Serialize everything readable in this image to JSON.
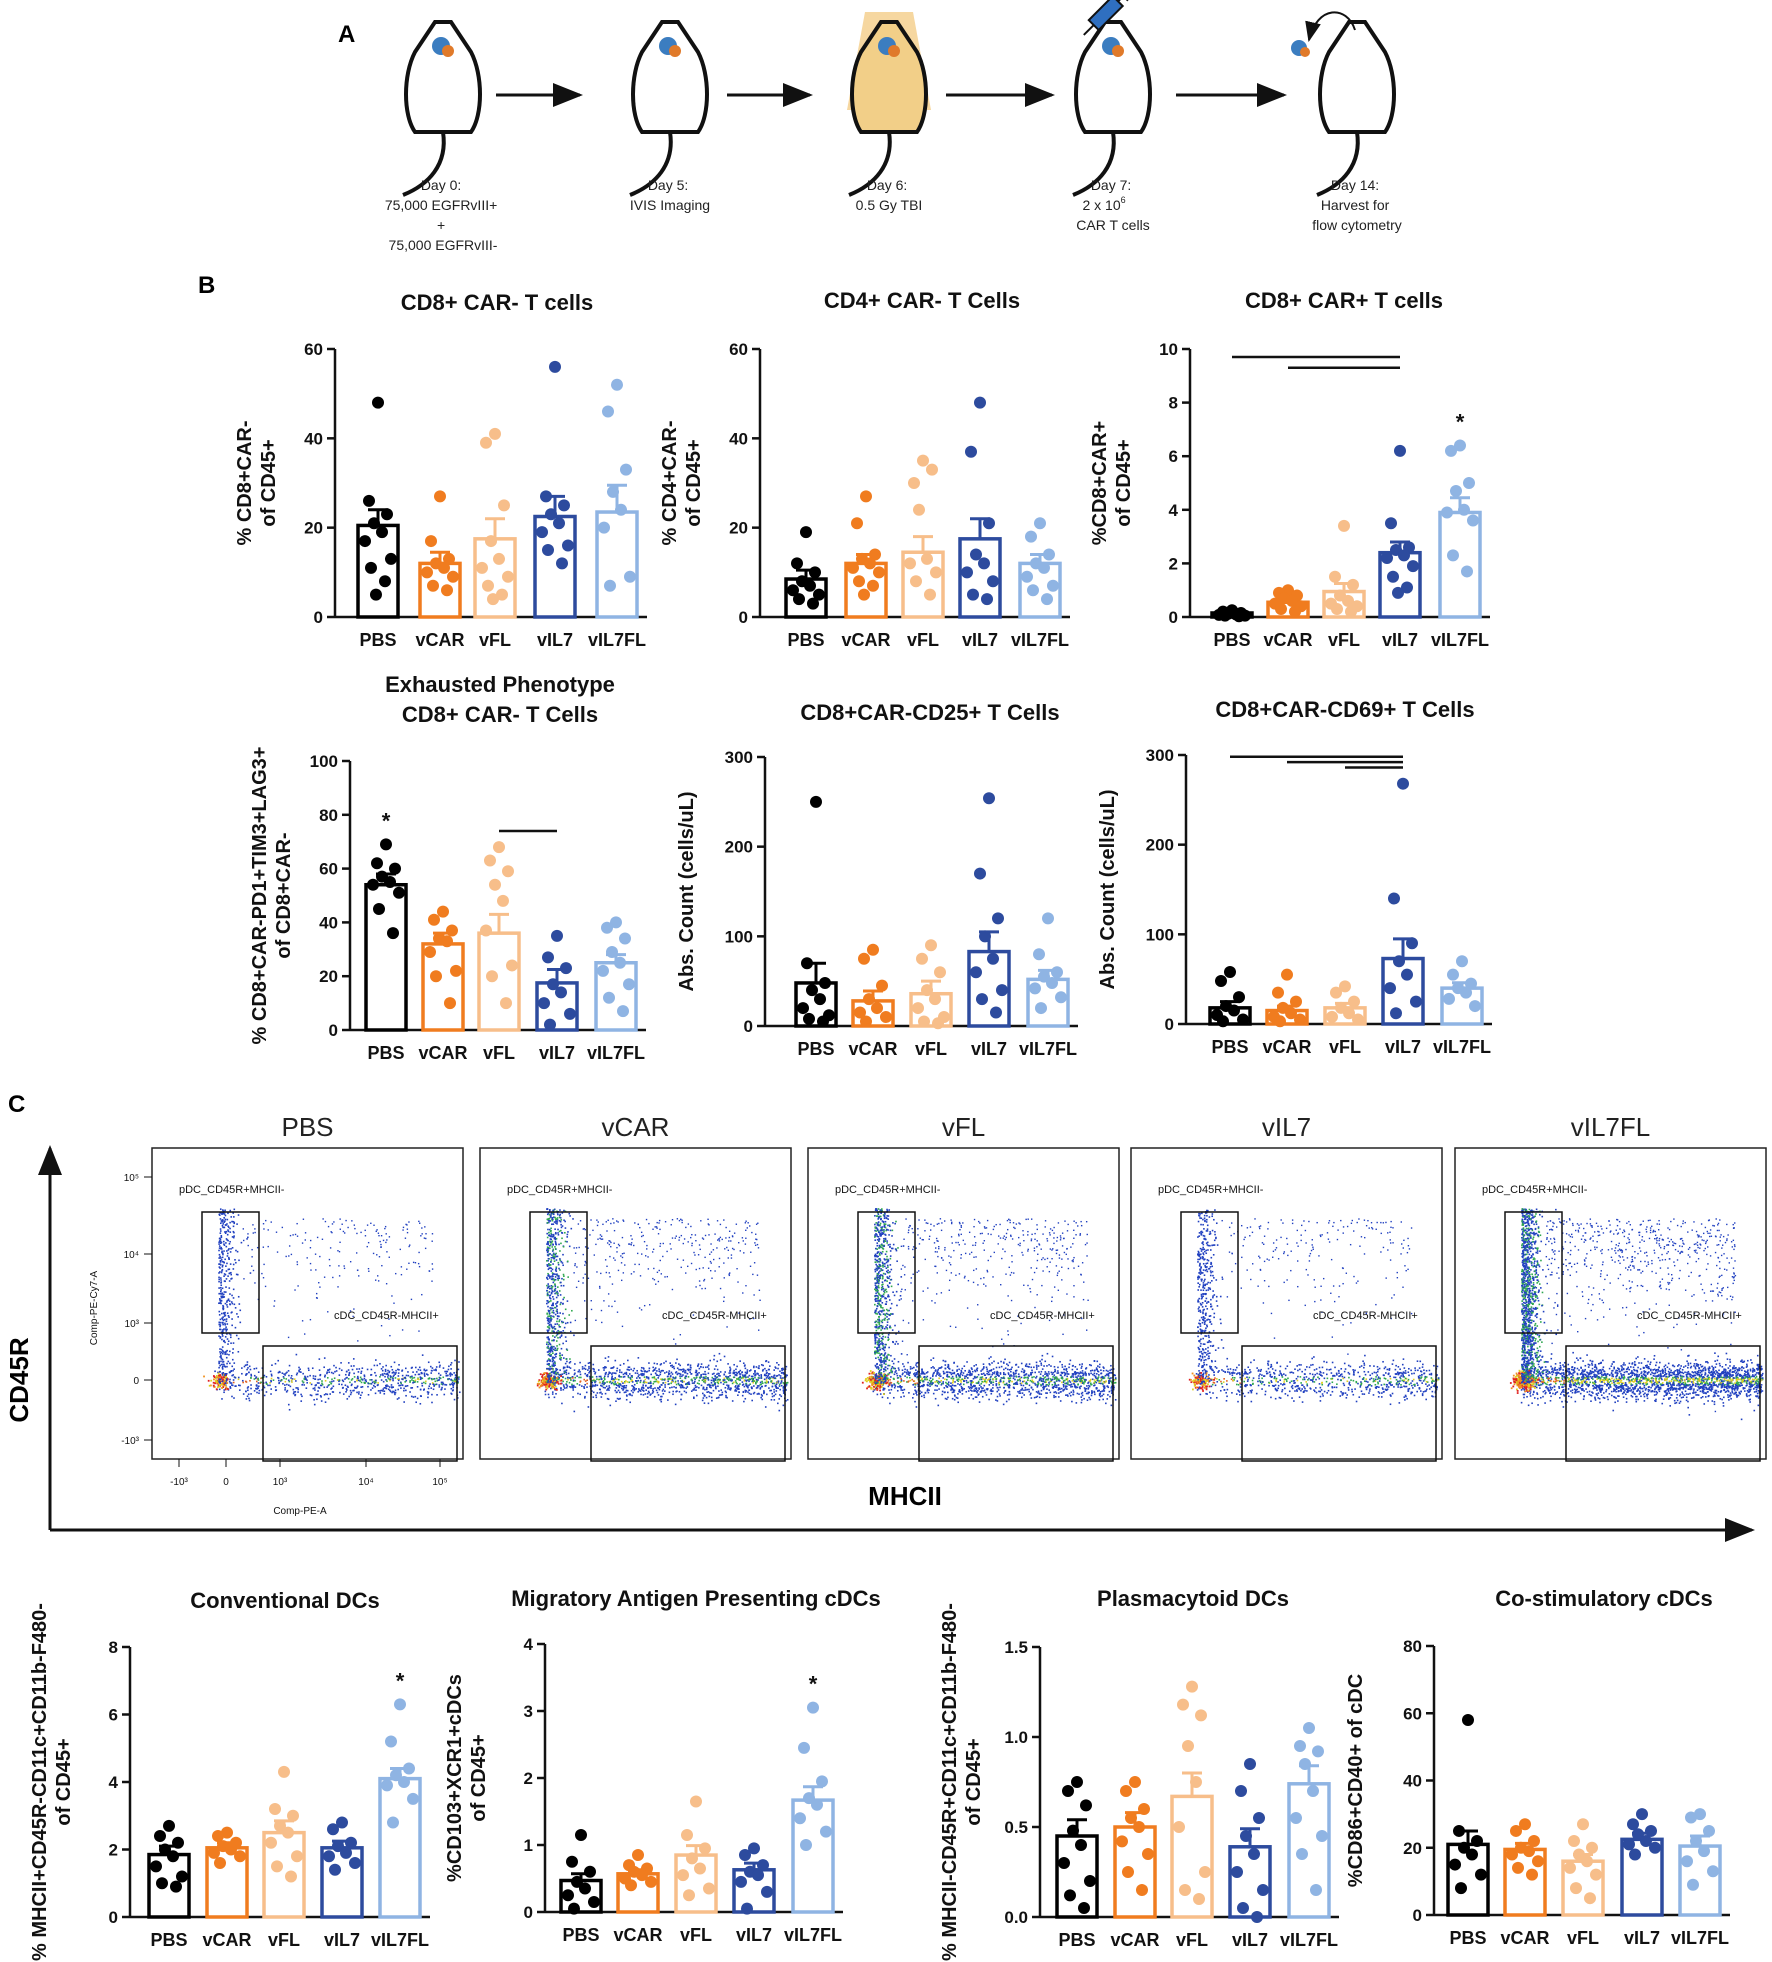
{
  "panel_labels": {
    "a": "A",
    "b": "B",
    "c": "C"
  },
  "groups": [
    "PBS",
    "vCAR",
    "vFL",
    "vIL7",
    "vIL7FL"
  ],
  "colors": {
    "PBS": "#000000",
    "vCAR": "#f07c1f",
    "vFL": "#f7be8a",
    "vIL7": "#2d4b9e",
    "vIL7FL": "#8fb4e3"
  },
  "timeline": {
    "steps": [
      {
        "lines": [
          "Day 0:",
          "75,000 EGFRvIII+",
          "+",
          "75,000 EGFRvIII-"
        ]
      },
      {
        "lines": [
          "Day 5:",
          "IVIS Imaging"
        ]
      },
      {
        "lines": [
          "Day 6:",
          "0.5 Gy TBI"
        ]
      },
      {
        "lines": [
          "Day 7:",
          "2 x 10",
          "CAR T cells"
        ],
        "superscript": "6"
      },
      {
        "lines": [
          "Day 14:",
          "Harvest for",
          "flow cytometry"
        ]
      }
    ]
  },
  "flow": {
    "titles": [
      "PBS",
      "vCAR",
      "vFL",
      "vIL7",
      "vIL7FL"
    ],
    "gate_pdc": "pDC_CD45R+MHCII-",
    "gate_cdc": "cDC_CD45R-MHCII+",
    "y_axis_label": "Comp-PE-Cy7-A",
    "x_axis_label": "Comp-PE-A",
    "y_ticks": [
      "10⁵",
      "10⁴",
      "10³",
      "0",
      "-10³"
    ],
    "x_ticks": [
      "-10³",
      "0",
      "10³",
      "10⁴",
      "10⁵"
    ],
    "y_big_label": "CD45R",
    "x_big_label": "MHCII",
    "density": [
      0.55,
      0.9,
      1.0,
      0.55,
      1.6
    ]
  },
  "chart_data": [
    {
      "id": "b1",
      "type": "bar",
      "title": [
        "CD8+ CAR- T cells"
      ],
      "ylabel": [
        "% CD8+CAR-",
        "of CD45+"
      ],
      "categories": [
        "PBS",
        "vCAR",
        "vFL",
        "vIL7",
        "vIL7FL"
      ],
      "ylim": [
        0,
        60
      ],
      "yticks": [
        0,
        20,
        40,
        60
      ],
      "tick_labels": [
        "0",
        "20",
        "40",
        "60"
      ],
      "values": [
        20.5,
        12,
        17.5,
        22.5,
        23.5
      ],
      "errors": [
        3.5,
        2.5,
        4.5,
        4.5,
        6
      ],
      "points": [
        [
          48,
          26,
          23,
          21,
          19,
          17,
          13,
          11,
          8,
          5
        ],
        [
          27,
          17,
          13,
          12,
          11,
          10,
          9,
          7,
          6
        ],
        [
          41,
          39,
          25,
          17,
          13,
          11,
          9,
          7,
          5,
          4
        ],
        [
          56,
          27,
          25,
          23,
          21,
          19,
          16,
          15,
          12
        ],
        [
          52,
          46,
          33,
          28,
          24,
          20,
          9,
          7
        ]
      ],
      "annotations": {
        "star_group": null,
        "bracket_lines": []
      }
    },
    {
      "id": "b2",
      "type": "bar",
      "title": [
        "CD4+ CAR- T Cells"
      ],
      "ylabel": [
        "% CD4+CAR-",
        "of CD45+"
      ],
      "categories": [
        "PBS",
        "vCAR",
        "vFL",
        "vIL7",
        "vIL7FL"
      ],
      "ylim": [
        0,
        60
      ],
      "yticks": [
        0,
        20,
        40,
        60
      ],
      "tick_labels": [
        "0",
        "20",
        "40",
        "60"
      ],
      "values": [
        8.5,
        12,
        14.5,
        17.5,
        12
      ],
      "errors": [
        2,
        2,
        3.5,
        4.5,
        2
      ],
      "points": [
        [
          19,
          12,
          10,
          8,
          7,
          6,
          5,
          4,
          3
        ],
        [
          27,
          21,
          14,
          13,
          12,
          11,
          10,
          8,
          7,
          5
        ],
        [
          35,
          30,
          33,
          24,
          13,
          12,
          10,
          8,
          5
        ],
        [
          48,
          37,
          21,
          14,
          12,
          10,
          8,
          5,
          4
        ],
        [
          21,
          18,
          14,
          12,
          11,
          9,
          7,
          6,
          4
        ]
      ],
      "annotations": {
        "star_group": null,
        "bracket_lines": []
      }
    },
    {
      "id": "b3",
      "type": "bar",
      "title": [
        "CD8+ CAR+ T cells"
      ],
      "ylabel": [
        "%CD8+CAR+",
        "of CD45+"
      ],
      "categories": [
        "PBS",
        "vCAR",
        "vFL",
        "vIL7",
        "vIL7FL"
      ],
      "ylim": [
        0,
        10
      ],
      "yticks": [
        0,
        2,
        4,
        6,
        8,
        10
      ],
      "tick_labels": [
        "0",
        "2",
        "4",
        "6",
        "8",
        "10"
      ],
      "values": [
        0.15,
        0.55,
        0.95,
        2.4,
        3.9
      ],
      "errors": [
        0.05,
        0.1,
        0.3,
        0.4,
        0.55
      ],
      "points": [
        [
          0.25,
          0.2,
          0.15,
          0.12,
          0.1,
          0.08,
          0.05,
          0.05,
          0.03
        ],
        [
          1.0,
          0.9,
          0.8,
          0.7,
          0.6,
          0.5,
          0.4,
          0.3,
          0.2
        ],
        [
          3.4,
          1.5,
          1.2,
          0.8,
          0.6,
          0.5,
          0.4,
          0.3,
          0.2
        ],
        [
          6.2,
          3.5,
          2.6,
          2.5,
          2.3,
          2.2,
          1.9,
          1.5,
          1.1,
          0.9
        ],
        [
          6.4,
          6.2,
          5.0,
          4.7,
          4.0,
          3.9,
          3.6,
          2.3,
          1.7
        ]
      ],
      "annotations": {
        "star_group": "vIL7FL",
        "bracket_lines": [
          {
            "from": "PBS",
            "to": "vIL7",
            "y": 9.7
          },
          {
            "from": "vCAR",
            "to": "vIL7",
            "y": 9.3
          }
        ]
      }
    },
    {
      "id": "b4",
      "type": "bar",
      "title": [
        "Exhausted Phenotype",
        "CD8+ CAR- T Cells"
      ],
      "ylabel": [
        "% CD8+CAR-PD1+TIM3+LAG3+",
        "of CD8+CAR-"
      ],
      "categories": [
        "PBS",
        "vCAR",
        "vFL",
        "vIL7",
        "vIL7FL"
      ],
      "ylim": [
        0,
        100
      ],
      "yticks": [
        0,
        20,
        40,
        60,
        80,
        100
      ],
      "tick_labels": [
        "0",
        "20",
        "40",
        "60",
        "80",
        "100"
      ],
      "values": [
        54,
        32,
        36,
        17.5,
        25
      ],
      "errors": [
        4,
        4,
        7,
        5,
        3
      ],
      "points": [
        [
          69,
          62,
          60,
          57,
          55,
          54,
          51,
          45,
          36
        ],
        [
          44,
          41,
          37,
          34,
          33,
          29,
          22,
          20,
          10
        ],
        [
          68,
          63,
          59,
          54,
          48,
          37,
          24,
          20,
          10
        ],
        [
          35,
          27,
          23,
          17,
          14,
          10,
          6,
          2
        ],
        [
          40,
          38,
          34,
          29,
          25,
          22,
          17,
          12,
          7
        ]
      ],
      "annotations": {
        "star_group": "PBS",
        "bracket_lines": [
          {
            "from": "vFL",
            "to": "vIL7",
            "y": 74
          }
        ]
      }
    },
    {
      "id": "b5",
      "type": "bar",
      "title": [
        "CD8+CAR-CD25+ T Cells"
      ],
      "ylabel": [
        "Abs. Count (cells/uL)"
      ],
      "categories": [
        "PBS",
        "vCAR",
        "vFL",
        "vIL7",
        "vIL7FL"
      ],
      "ylim": [
        0,
        300
      ],
      "yticks": [
        0,
        100,
        200,
        300
      ],
      "tick_labels": [
        "0",
        "100",
        "200",
        "300"
      ],
      "values": [
        48,
        28,
        36,
        83,
        52
      ],
      "errors": [
        22,
        11,
        14,
        22,
        10
      ],
      "points": [
        [
          250,
          70,
          48,
          40,
          30,
          20,
          12,
          8,
          5
        ],
        [
          85,
          75,
          45,
          30,
          20,
          15,
          10,
          5
        ],
        [
          90,
          75,
          60,
          40,
          30,
          20,
          10,
          5,
          3
        ],
        [
          254,
          170,
          120,
          100,
          75,
          60,
          40,
          30,
          15
        ],
        [
          120,
          80,
          60,
          55,
          48,
          42,
          32,
          20
        ]
      ],
      "annotations": {
        "star_group": null,
        "bracket_lines": []
      }
    },
    {
      "id": "b6",
      "type": "bar",
      "title": [
        "CD8+CAR-CD69+ T Cells"
      ],
      "ylabel": [
        "Abs. Count (cells/uL)"
      ],
      "categories": [
        "PBS",
        "vCAR",
        "vFL",
        "vIL7",
        "vIL7FL"
      ],
      "ylim": [
        0,
        300
      ],
      "yticks": [
        0,
        100,
        200,
        300
      ],
      "tick_labels": [
        "0",
        "100",
        "200",
        "300"
      ],
      "values": [
        18,
        15,
        18,
        73,
        40
      ],
      "errors": [
        7,
        5,
        5,
        22,
        6
      ],
      "points": [
        [
          58,
          48,
          30,
          20,
          15,
          10,
          5,
          3
        ],
        [
          55,
          35,
          25,
          18,
          12,
          8,
          5,
          3
        ],
        [
          42,
          35,
          25,
          18,
          12,
          8,
          5
        ],
        [
          268,
          140,
          90,
          70,
          55,
          40,
          25,
          12
        ],
        [
          70,
          55,
          45,
          40,
          35,
          28,
          20
        ]
      ],
      "annotations": {
        "star_group": null,
        "bracket_lines": [
          {
            "from": "PBS",
            "to": "vIL7",
            "y": 298
          },
          {
            "from": "vCAR",
            "to": "vIL7",
            "y": 292
          },
          {
            "from": "vFL",
            "to": "vIL7",
            "y": 286
          }
        ]
      }
    },
    {
      "id": "c1",
      "type": "bar",
      "title": [
        "Conventional DCs"
      ],
      "ylabel": [
        "% MHCII+CD45R-CD11c+CD11b-F480-",
        "of CD45+"
      ],
      "categories": [
        "PBS",
        "vCAR",
        "vFL",
        "vIL7",
        "vIL7FL"
      ],
      "ylim": [
        0,
        8
      ],
      "yticks": [
        0,
        2,
        4,
        6,
        8
      ],
      "tick_labels": [
        "0",
        "2",
        "4",
        "6",
        "8"
      ],
      "values": [
        1.85,
        2.05,
        2.5,
        2.05,
        4.1
      ],
      "errors": [
        0.25,
        0.15,
        0.35,
        0.2,
        0.3
      ],
      "points": [
        [
          2.7,
          2.4,
          2.2,
          2.0,
          1.8,
          1.5,
          1.2,
          1.0,
          0.9
        ],
        [
          2.5,
          2.4,
          2.2,
          2.1,
          2.0,
          1.9,
          1.8,
          1.6
        ],
        [
          4.3,
          3.2,
          3.0,
          2.7,
          2.5,
          2.2,
          1.8,
          1.5,
          1.2
        ],
        [
          2.8,
          2.6,
          2.2,
          2.1,
          1.9,
          1.8,
          1.6,
          1.4
        ],
        [
          6.3,
          5.2,
          4.4,
          4.2,
          4.0,
          3.9,
          3.5,
          2.8
        ]
      ],
      "annotations": {
        "star_group": "vIL7FL",
        "bracket_lines": []
      }
    },
    {
      "id": "c2",
      "type": "bar",
      "title": [
        "Migratory Antigen Presenting cDCs"
      ],
      "ylabel": [
        "%CD103+XCR1+cDCs",
        "of CD45+"
      ],
      "categories": [
        "PBS",
        "vCAR",
        "vFL",
        "vIL7",
        "vIL7FL"
      ],
      "ylim": [
        0,
        4
      ],
      "yticks": [
        0,
        1,
        2,
        3,
        4
      ],
      "tick_labels": [
        "0",
        "1",
        "2",
        "3",
        "4"
      ],
      "values": [
        0.47,
        0.57,
        0.85,
        0.63,
        1.67
      ],
      "errors": [
        0.1,
        0.06,
        0.14,
        0.1,
        0.2
      ],
      "points": [
        [
          1.15,
          0.75,
          0.6,
          0.45,
          0.35,
          0.25,
          0.15,
          0.05
        ],
        [
          0.85,
          0.7,
          0.65,
          0.6,
          0.55,
          0.5,
          0.45,
          0.4
        ],
        [
          1.65,
          1.15,
          0.95,
          0.8,
          0.65,
          0.55,
          0.35,
          0.25
        ],
        [
          0.95,
          0.85,
          0.7,
          0.6,
          0.55,
          0.45,
          0.3,
          0.05
        ],
        [
          3.05,
          2.45,
          1.95,
          1.7,
          1.6,
          1.4,
          1.2,
          1.0
        ]
      ],
      "annotations": {
        "star_group": "vIL7FL",
        "bracket_lines": []
      }
    },
    {
      "id": "c3",
      "type": "bar",
      "title": [
        "Plasmacytoid DCs"
      ],
      "ylabel": [
        "% MHCII-CD45R+CD11c+CD11b-F480-",
        "of CD45+"
      ],
      "categories": [
        "PBS",
        "vCAR",
        "vFL",
        "vIL7",
        "vIL7FL"
      ],
      "ylim": [
        0,
        1.5
      ],
      "yticks": [
        0,
        0.5,
        1.0,
        1.5
      ],
      "tick_labels": [
        "0.0",
        "0.5",
        "1.0",
        "1.5"
      ],
      "values": [
        0.45,
        0.5,
        0.67,
        0.39,
        0.74
      ],
      "errors": [
        0.09,
        0.08,
        0.13,
        0.1,
        0.1
      ],
      "points": [
        [
          0.75,
          0.7,
          0.62,
          0.48,
          0.4,
          0.3,
          0.2,
          0.12,
          0.05
        ],
        [
          0.75,
          0.7,
          0.6,
          0.55,
          0.5,
          0.42,
          0.35,
          0.25,
          0.15
        ],
        [
          1.28,
          1.18,
          1.12,
          0.95,
          0.75,
          0.5,
          0.25,
          0.15,
          0.1
        ],
        [
          0.85,
          0.7,
          0.55,
          0.45,
          0.35,
          0.25,
          0.15,
          0.05,
          0.0
        ],
        [
          1.05,
          0.95,
          0.92,
          0.85,
          0.7,
          0.55,
          0.45,
          0.35,
          0.15
        ]
      ],
      "annotations": {
        "star_group": null,
        "bracket_lines": []
      }
    },
    {
      "id": "c4",
      "type": "bar",
      "title": [
        "Co-stimulatory cDCs"
      ],
      "ylabel": [
        "%CD86+CD40+ of cDC"
      ],
      "categories": [
        "PBS",
        "vCAR",
        "vFL",
        "vIL7",
        "vIL7FL"
      ],
      "ylim": [
        0,
        80
      ],
      "yticks": [
        0,
        20,
        40,
        60,
        80
      ],
      "tick_labels": [
        "0",
        "20",
        "40",
        "60",
        "80"
      ],
      "values": [
        21,
        19.5,
        16,
        22.5,
        20.5
      ],
      "errors": [
        4,
        1.8,
        2,
        1.8,
        3
      ],
      "points": [
        [
          58,
          25,
          22,
          20,
          18,
          15,
          12,
          8
        ],
        [
          27,
          25,
          22,
          20,
          19,
          18,
          16,
          14,
          12
        ],
        [
          27,
          22,
          20,
          18,
          16,
          14,
          12,
          8,
          5
        ],
        [
          30,
          27,
          25,
          24,
          22,
          21,
          20,
          18
        ],
        [
          30,
          29,
          25,
          22,
          19,
          16,
          13,
          9
        ]
      ],
      "annotations": {
        "star_group": null,
        "bracket_lines": []
      }
    }
  ]
}
